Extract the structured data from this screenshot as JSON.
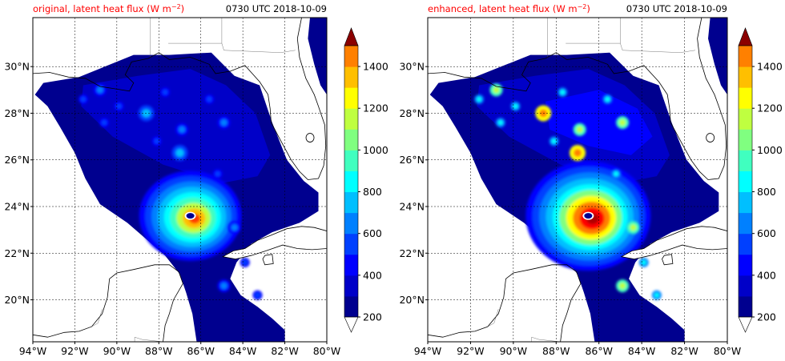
{
  "panels": [
    {
      "key": "original",
      "title_left": "original, latent heat flux (W m",
      "title_unit_sup": "−2",
      "title_close": ")",
      "title_right": "0730 UTC 2018-10-09",
      "storm_intensity": "moderate"
    },
    {
      "key": "enhanced",
      "title_left": "enhanced, latent heat flux (W m",
      "title_unit_sup": "−2",
      "title_close": ")",
      "title_right": "0730 UTC 2018-10-09",
      "storm_intensity": "strong"
    }
  ],
  "x_ticks": [
    "94°W",
    "92°W",
    "90°W",
    "88°W",
    "86°W",
    "84°W",
    "82°W",
    "80°W"
  ],
  "y_ticks": [
    "30°N",
    "28°N",
    "26°N",
    "24°N",
    "22°N",
    "20°N"
  ],
  "colorbar": {
    "ticks": [
      "1400",
      "1200",
      "1000",
      "800",
      "600",
      "400",
      "200"
    ],
    "levels": [
      200,
      300,
      400,
      500,
      600,
      700,
      800,
      900,
      1000,
      1100,
      1200,
      1300,
      1400,
      1500
    ],
    "colors": [
      "#00008f",
      "#0000c8",
      "#0000ff",
      "#0040ff",
      "#0080ff",
      "#00bfff",
      "#00ffff",
      "#40ffbf",
      "#80ff80",
      "#bfff40",
      "#ffff00",
      "#ffbf00",
      "#ff8000",
      "#ff4000",
      "#ff0000"
    ],
    "over_color": "#8b0000",
    "under_color": "#ffffff"
  },
  "colors": {
    "title_red": "#ff0000",
    "coast": "#000000",
    "grid": "#000000"
  }
}
